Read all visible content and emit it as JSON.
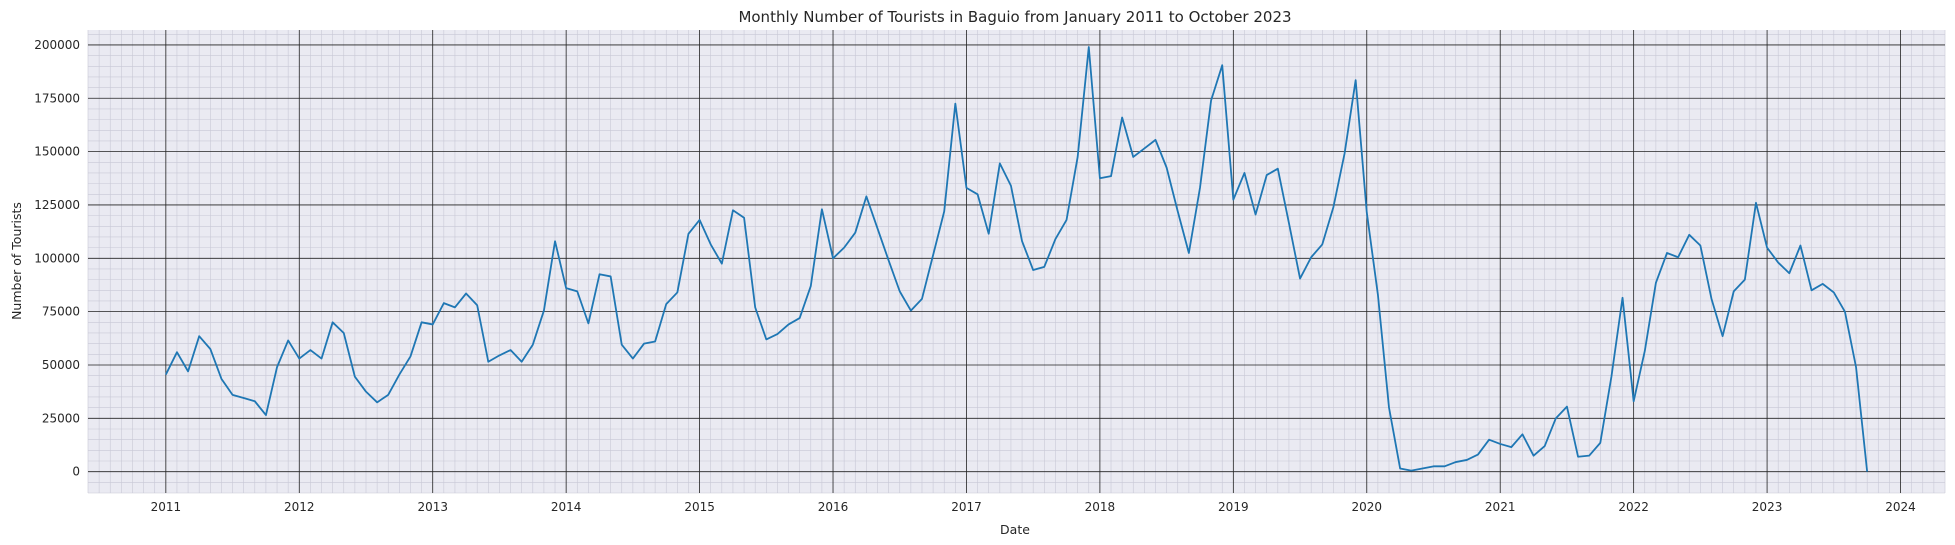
{
  "chart_data": {
    "type": "line",
    "title": "Monthly Number of Tourists in Baguio from January 2011 to October 2023",
    "xlabel": "Date",
    "ylabel": "Number of Tourists",
    "xlim": [
      "2010-06",
      "2024-05"
    ],
    "ylim": [
      -10000,
      207000
    ],
    "x_ticks": [
      "2011",
      "2012",
      "2013",
      "2014",
      "2015",
      "2016",
      "2017",
      "2018",
      "2019",
      "2020",
      "2021",
      "2022",
      "2023",
      "2024"
    ],
    "y_ticks": [
      "0",
      "25000",
      "50000",
      "75000",
      "100000",
      "125000",
      "150000",
      "175000",
      "200000"
    ],
    "grid": true,
    "colors": {
      "background": "#eaeaf2",
      "line": "#1f77b4",
      "major_grid": "#222222",
      "minor_grid": "#c8c8d6"
    },
    "series": [
      {
        "x": [
          "2011-01",
          "2011-02",
          "2011-03",
          "2011-04",
          "2011-05",
          "2011-06",
          "2011-07",
          "2011-08",
          "2011-09",
          "2011-10",
          "2011-11",
          "2011-12",
          "2012-01",
          "2012-02",
          "2012-03",
          "2012-04",
          "2012-05",
          "2012-06",
          "2012-07",
          "2012-08",
          "2012-09",
          "2012-10",
          "2012-11",
          "2012-12",
          "2013-01",
          "2013-02",
          "2013-03",
          "2013-04",
          "2013-05",
          "2013-06",
          "2013-07",
          "2013-08",
          "2013-09",
          "2013-10",
          "2013-11",
          "2013-12",
          "2014-01",
          "2014-02",
          "2014-03",
          "2014-04",
          "2014-05",
          "2014-06",
          "2014-07",
          "2014-08",
          "2014-09",
          "2014-10",
          "2014-11",
          "2014-12",
          "2015-01",
          "2015-02",
          "2015-03",
          "2015-04",
          "2015-05",
          "2015-06",
          "2015-07",
          "2015-08",
          "2015-09",
          "2015-10",
          "2015-11",
          "2015-12",
          "2016-01",
          "2016-02",
          "2016-03",
          "2016-04",
          "2016-05",
          "2016-06",
          "2016-07",
          "2016-08",
          "2016-09",
          "2016-10",
          "2016-11",
          "2016-12",
          "2017-01",
          "2017-02",
          "2017-03",
          "2017-04",
          "2017-05",
          "2017-06",
          "2017-07",
          "2017-08",
          "2017-09",
          "2017-10",
          "2017-11",
          "2017-12",
          "2018-01",
          "2018-02",
          "2018-03",
          "2018-04",
          "2018-05",
          "2018-06",
          "2018-07",
          "2018-08",
          "2018-09",
          "2018-10",
          "2018-11",
          "2018-12",
          "2019-01",
          "2019-02",
          "2019-03",
          "2019-04",
          "2019-05",
          "2019-06",
          "2019-07",
          "2019-08",
          "2019-09",
          "2019-10",
          "2019-11",
          "2019-12",
          "2020-01",
          "2020-02",
          "2020-03",
          "2020-04",
          "2020-05",
          "2020-06",
          "2020-07",
          "2020-08",
          "2020-09",
          "2020-10",
          "2020-11",
          "2020-12",
          "2021-01",
          "2021-02",
          "2021-03",
          "2021-04",
          "2021-05",
          "2021-06",
          "2021-07",
          "2021-08",
          "2021-09",
          "2021-10",
          "2021-11",
          "2021-12",
          "2022-01",
          "2022-02",
          "2022-03",
          "2022-04",
          "2022-05",
          "2022-06",
          "2022-07",
          "2022-08",
          "2022-09",
          "2022-10",
          "2022-11",
          "2022-12",
          "2023-01",
          "2023-02",
          "2023-03",
          "2023-04",
          "2023-05",
          "2023-06",
          "2023-07",
          "2023-08",
          "2023-09",
          "2023-10"
        ],
        "values": [
          45500,
          56000,
          47000,
          63500,
          57500,
          43500,
          36000,
          34500,
          33000,
          26500,
          49000,
          61500,
          53000,
          57000,
          53000,
          70000,
          65000,
          44500,
          37500,
          32500,
          36000,
          45500,
          54000,
          70000,
          69000,
          79000,
          77000,
          83500,
          78000,
          51500,
          54500,
          57000,
          51500,
          59500,
          75500,
          108000,
          86000,
          84500,
          69500,
          92500,
          91500,
          59500,
          53000,
          60000,
          61000,
          78500,
          84000,
          111500,
          118000,
          106500,
          97500,
          122500,
          119000,
          77000,
          62000,
          64500,
          69000,
          72000,
          87000,
          123000,
          100000,
          105000,
          112000,
          129000,
          114000,
          99000,
          84500,
          75500,
          81000,
          101500,
          122000,
          172500,
          133000,
          130000,
          111500,
          144500,
          134000,
          108000,
          94500,
          96000,
          109000,
          118000,
          147500,
          199000,
          137500,
          138500,
          166000,
          147500,
          151500,
          155500,
          142500,
          122000,
          102500,
          133000,
          174000,
          190500,
          127500,
          140000,
          120500,
          139000,
          142000,
          116500,
          90500,
          100500,
          106500,
          124000,
          149000,
          183500,
          121500,
          83000,
          30000,
          1500,
          500,
          1500,
          2500,
          2500,
          4500,
          5500,
          8000,
          15000,
          13000,
          11500,
          17500,
          7500,
          12000,
          25000,
          30500,
          7000,
          7500,
          13500,
          44500,
          81500,
          33000,
          56500,
          88500,
          102500,
          100500,
          111000,
          106000,
          81000,
          63500,
          84500,
          90000,
          126000,
          105000,
          98000,
          93000,
          106000,
          85000,
          88000,
          84000,
          75000,
          49000,
          0
        ]
      }
    ]
  }
}
